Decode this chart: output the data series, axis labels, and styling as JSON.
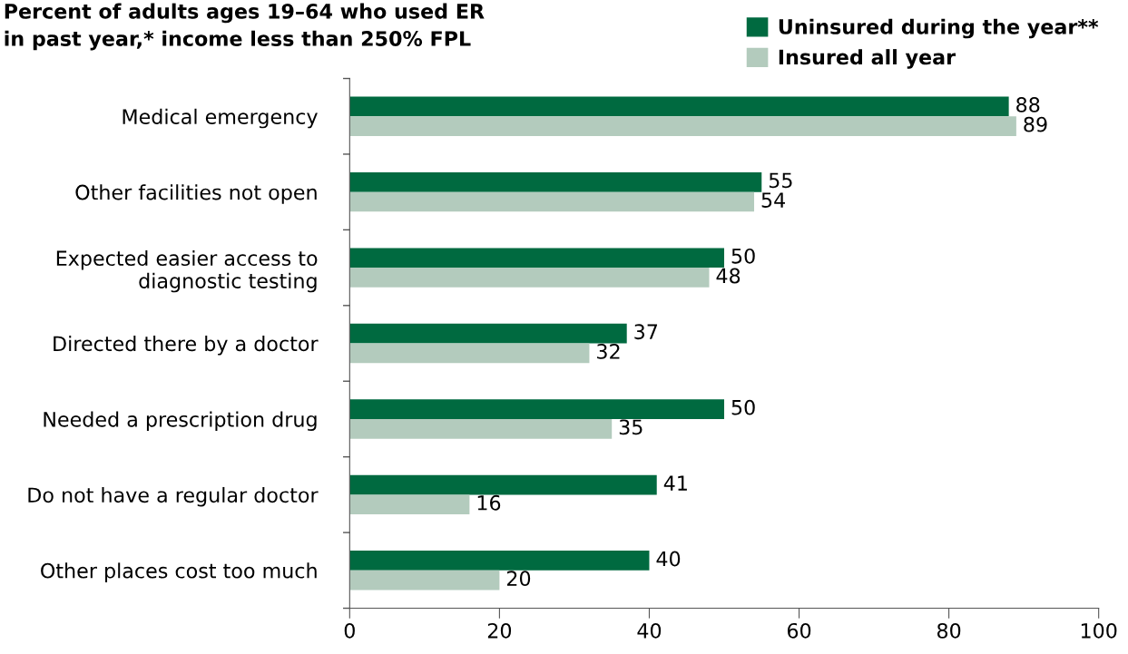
{
  "chart_data": {
    "type": "bar",
    "orientation": "horizontal",
    "title": "Percent of adults ages 19–64 who used ER\nin past year,* income less than 250% FPL",
    "categories": [
      "Medical emergency",
      "Other facilities not open",
      "Expected easier access to\ndiagnostic testing",
      "Directed there by a doctor",
      "Needed a prescription drug",
      "Do not have a regular doctor",
      "Other places cost too much"
    ],
    "series": [
      {
        "name": "Uninsured during the year**",
        "color": "#006a40",
        "values": [
          88,
          55,
          50,
          37,
          50,
          41,
          40
        ]
      },
      {
        "name": "Insured all year",
        "color": "#b3cbbd",
        "values": [
          89,
          54,
          48,
          32,
          35,
          16,
          20
        ]
      }
    ],
    "xlim": [
      0,
      100
    ],
    "xticks": [
      0,
      20,
      40,
      60,
      80,
      100
    ],
    "data_labels": true,
    "legend": "top right",
    "grid": false
  }
}
